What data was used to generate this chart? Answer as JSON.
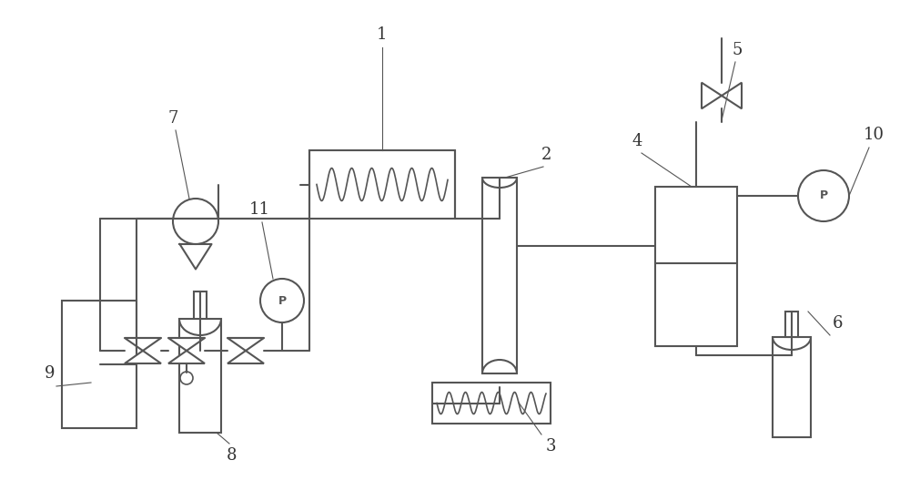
{
  "bg_color": "#ffffff",
  "lc": "#555555",
  "lw": 1.5,
  "label_fontsize": 13,
  "label_color": "#333333",
  "figw": 10.0,
  "figh": 5.5
}
